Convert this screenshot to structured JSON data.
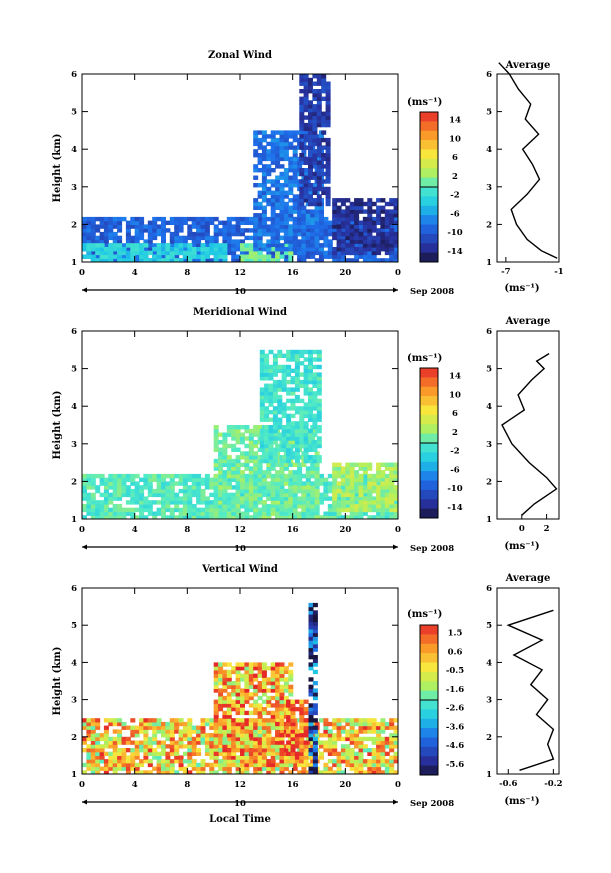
{
  "chart_data": [
    {
      "type": "heatmap",
      "title": "Zonal Wind",
      "ylabel": "Height (km)",
      "xlabel": "",
      "date_label": "10",
      "date_suffix": "Sep 2008",
      "x_ticks": [
        "0",
        "4",
        "8",
        "12",
        "16",
        "20",
        "0"
      ],
      "y_ticks": [
        "1",
        "2",
        "3",
        "4",
        "5",
        "6"
      ],
      "xlim": [
        0,
        24
      ],
      "ylim": [
        1,
        6
      ],
      "colorbar": {
        "unit": "(ms⁻¹)",
        "ticks": [
          "14",
          "10",
          "6",
          "2",
          "-2",
          "-6",
          "-10",
          "-14"
        ],
        "range": [
          -16,
          16
        ]
      },
      "regions": [
        {
          "t0": 0,
          "t1": 24,
          "h0": 1.0,
          "h1": 2.2,
          "value": -9
        },
        {
          "t0": 0,
          "t1": 11,
          "h0": 1.0,
          "h1": 1.5,
          "value": -3
        },
        {
          "t0": 12,
          "t1": 16,
          "h0": 1.0,
          "h1": 1.5,
          "value": 1
        },
        {
          "t0": 13,
          "t1": 18,
          "h0": 1.3,
          "h1": 4.5,
          "value": -8
        },
        {
          "t0": 16.5,
          "t1": 18.5,
          "h0": 2.5,
          "h1": 6.4,
          "value": -12
        },
        {
          "t0": 19,
          "t1": 24,
          "h0": 1.2,
          "h1": 2.7,
          "value": -13
        }
      ],
      "profile": {
        "title": "Average",
        "unit": "(ms⁻¹)",
        "x_ticks": [
          "-7",
          "-1"
        ],
        "xlim": [
          -8,
          -1
        ],
        "heights": [
          1.1,
          1.3,
          1.6,
          2.0,
          2.4,
          2.8,
          3.2,
          3.6,
          4.0,
          4.4,
          4.8,
          5.2,
          5.6,
          6.0,
          6.3
        ],
        "values": [
          -1.2,
          -3.0,
          -4.6,
          -5.8,
          -6.4,
          -4.6,
          -3.2,
          -4.0,
          -5.1,
          -3.3,
          -4.8,
          -4.2,
          -5.6,
          -6.6,
          -7.8
        ]
      }
    },
    {
      "type": "heatmap",
      "title": "Meridional Wind",
      "ylabel": "Height (km)",
      "xlabel": "",
      "date_label": "10",
      "date_suffix": "Sep 2008",
      "x_ticks": [
        "0",
        "4",
        "8",
        "12",
        "16",
        "20",
        "0"
      ],
      "y_ticks": [
        "1",
        "2",
        "3",
        "4",
        "5",
        "6"
      ],
      "xlim": [
        0,
        24
      ],
      "ylim": [
        1,
        6
      ],
      "colorbar": {
        "unit": "(ms⁻¹)",
        "ticks": [
          "14",
          "10",
          "6",
          "2",
          "-2",
          "-6",
          "-10",
          "-14"
        ],
        "range": [
          -16,
          16
        ]
      },
      "regions": [
        {
          "t0": 0,
          "t1": 24,
          "h0": 1.0,
          "h1": 2.2,
          "value": 0
        },
        {
          "t0": 10,
          "t1": 18,
          "h0": 1.0,
          "h1": 3.5,
          "value": 1
        },
        {
          "t0": 13.5,
          "t1": 18,
          "h0": 2.5,
          "h1": 5.4,
          "value": -1
        },
        {
          "t0": 19,
          "t1": 24,
          "h0": 1.2,
          "h1": 2.5,
          "value": 3
        }
      ],
      "profile": {
        "title": "Average",
        "unit": "(ms⁻¹)",
        "x_ticks": [
          "0",
          "2"
        ],
        "xlim": [
          -2,
          3
        ],
        "heights": [
          1.1,
          1.4,
          1.8,
          2.1,
          2.5,
          3.0,
          3.5,
          3.9,
          4.3,
          4.7,
          5.0,
          5.2,
          5.4
        ],
        "values": [
          0.0,
          1.0,
          2.8,
          2.0,
          0.6,
          -0.8,
          -1.6,
          0.2,
          -0.3,
          0.8,
          1.8,
          1.2,
          2.2
        ]
      }
    },
    {
      "type": "heatmap",
      "title": "Vertical Wind",
      "ylabel": "Height (km)",
      "xlabel": "Local Time",
      "date_label": "10",
      "date_suffix": "Sep 2008",
      "x_ticks": [
        "0",
        "4",
        "8",
        "12",
        "16",
        "20",
        "0"
      ],
      "y_ticks": [
        "1",
        "2",
        "3",
        "4",
        "5",
        "6"
      ],
      "xlim": [
        0,
        24
      ],
      "ylim": [
        1,
        6
      ],
      "colorbar": {
        "unit": "(ms⁻¹)",
        "ticks": [
          "1.5",
          "0.6",
          "-0.5",
          "-1.6",
          "-2.6",
          "-3.6",
          "-4.6",
          "-5.6"
        ],
        "range": [
          -6.1,
          2.0
        ]
      },
      "regions": [
        {
          "t0": 0,
          "t1": 24,
          "h0": 1.0,
          "h1": 2.5,
          "value": 0.0
        },
        {
          "t0": 10,
          "t1": 16,
          "h0": 1.2,
          "h1": 4.0,
          "value": 0.3
        },
        {
          "t0": 15.5,
          "t1": 17,
          "h0": 1.3,
          "h1": 3.0,
          "value": 1.5
        },
        {
          "t0": 17.2,
          "t1": 17.6,
          "h0": 1.0,
          "h1": 5.5,
          "value": -5.0
        }
      ],
      "profile": {
        "title": "Average",
        "unit": "(ms⁻¹)",
        "x_ticks": [
          "-0.6",
          "-0.2"
        ],
        "xlim": [
          -0.7,
          -0.15
        ],
        "heights": [
          1.1,
          1.4,
          1.8,
          2.2,
          2.6,
          3.0,
          3.4,
          3.8,
          4.2,
          4.6,
          5.0,
          5.4
        ],
        "values": [
          -0.5,
          -0.2,
          -0.25,
          -0.2,
          -0.35,
          -0.25,
          -0.4,
          -0.3,
          -0.55,
          -0.3,
          -0.6,
          -0.2
        ]
      }
    }
  ]
}
